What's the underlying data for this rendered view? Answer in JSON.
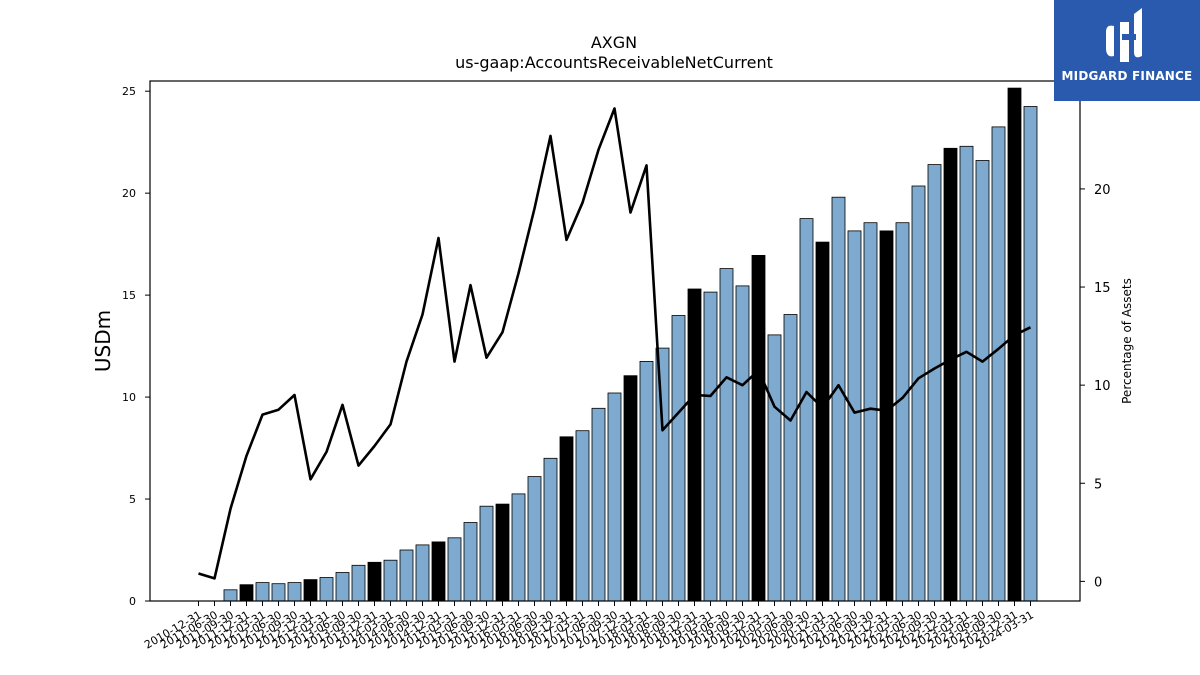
{
  "brand": {
    "name": "MIDGARD FINANCE",
    "bg_color": "#2a5aad"
  },
  "chart_data": {
    "type": "bar",
    "title": "AXGN",
    "subtitle": "us-gaap:AccountsReceivableNetCurrent",
    "ylabel": "USDm",
    "y2label": "Percentage of Assets",
    "ylim": [
      0,
      25.5
    ],
    "y2lim": [
      -1,
      25.5
    ],
    "yticks": [
      0,
      5,
      10,
      15,
      20,
      25
    ],
    "y2ticks": [
      0,
      5,
      10,
      15,
      20
    ],
    "grid": false,
    "bar_color": "#7eaacf",
    "highlight_color": "#000000",
    "line_color": "#000000",
    "categories": [
      "2010-12-31",
      "2011-06-30",
      "2011-09-30",
      "2011-12-31",
      "2012-03-31",
      "2012-06-30",
      "2012-09-30",
      "2012-12-31",
      "2013-03-31",
      "2013-06-30",
      "2013-09-30",
      "2013-12-31",
      "2014-03-31",
      "2014-06-30",
      "2014-09-30",
      "2014-12-31",
      "2015-03-31",
      "2015-06-30",
      "2015-09-30",
      "2015-12-31",
      "2016-03-31",
      "2016-06-30",
      "2016-09-30",
      "2016-12-31",
      "2017-03-31",
      "2017-06-30",
      "2017-09-30",
      "2017-12-31",
      "2018-03-31",
      "2018-06-30",
      "2018-09-30",
      "2018-12-31",
      "2019-03-31",
      "2019-06-30",
      "2019-09-30",
      "2019-12-31",
      "2020-03-31",
      "2020-06-30",
      "2020-09-30",
      "2020-12-31",
      "2021-03-31",
      "2021-06-30",
      "2021-09-30",
      "2021-12-31",
      "2022-03-31",
      "2022-06-30",
      "2022-09-30",
      "2022-12-31",
      "2023-03-31",
      "2023-06-30",
      "2023-09-30",
      "2023-12-31",
      "2024-03-31"
    ],
    "series": [
      {
        "type": "bar",
        "axis": "left",
        "values": [
          0,
          0,
          0.55,
          0.8,
          0.9,
          0.85,
          0.9,
          1.05,
          1.15,
          1.4,
          1.75,
          1.9,
          2.0,
          2.5,
          2.75,
          2.9,
          3.1,
          3.85,
          4.65,
          4.75,
          5.25,
          6.1,
          7.0,
          8.05,
          8.35,
          9.45,
          10.2,
          11.05,
          11.75,
          12.4,
          14.0,
          15.3,
          15.15,
          16.3,
          15.45,
          16.95,
          13.05,
          14.05,
          18.75,
          17.6,
          19.8,
          18.15,
          18.55,
          18.15,
          18.55,
          20.35,
          21.4,
          22.2,
          22.3,
          21.6,
          23.25,
          25.15,
          24.25
        ],
        "highlighted": [
          false,
          false,
          false,
          true,
          false,
          false,
          false,
          true,
          false,
          false,
          false,
          true,
          false,
          false,
          false,
          true,
          false,
          false,
          false,
          true,
          false,
          false,
          false,
          true,
          false,
          false,
          false,
          true,
          false,
          false,
          false,
          true,
          false,
          false,
          false,
          true,
          false,
          false,
          false,
          true,
          false,
          false,
          false,
          true,
          false,
          false,
          false,
          true,
          false,
          false,
          false,
          true,
          false
        ]
      },
      {
        "type": "line",
        "axis": "right",
        "values": [
          0.4,
          0.15,
          3.7,
          6.4,
          8.5,
          8.75,
          9.5,
          5.2,
          6.6,
          9.0,
          5.9,
          6.9,
          8.0,
          11.2,
          13.6,
          17.5,
          11.2,
          15.1,
          11.4,
          12.7,
          15.7,
          19.0,
          22.7,
          17.4,
          19.3,
          22.0,
          24.1,
          18.8,
          21.2,
          7.7,
          8.6,
          9.5,
          9.45,
          10.4,
          10.0,
          10.75,
          8.9,
          8.2,
          9.65,
          8.85,
          10.0,
          8.6,
          8.8,
          8.7,
          9.35,
          10.35,
          10.85,
          11.3,
          11.7,
          11.2,
          11.85,
          12.55,
          12.95
        ]
      }
    ]
  }
}
